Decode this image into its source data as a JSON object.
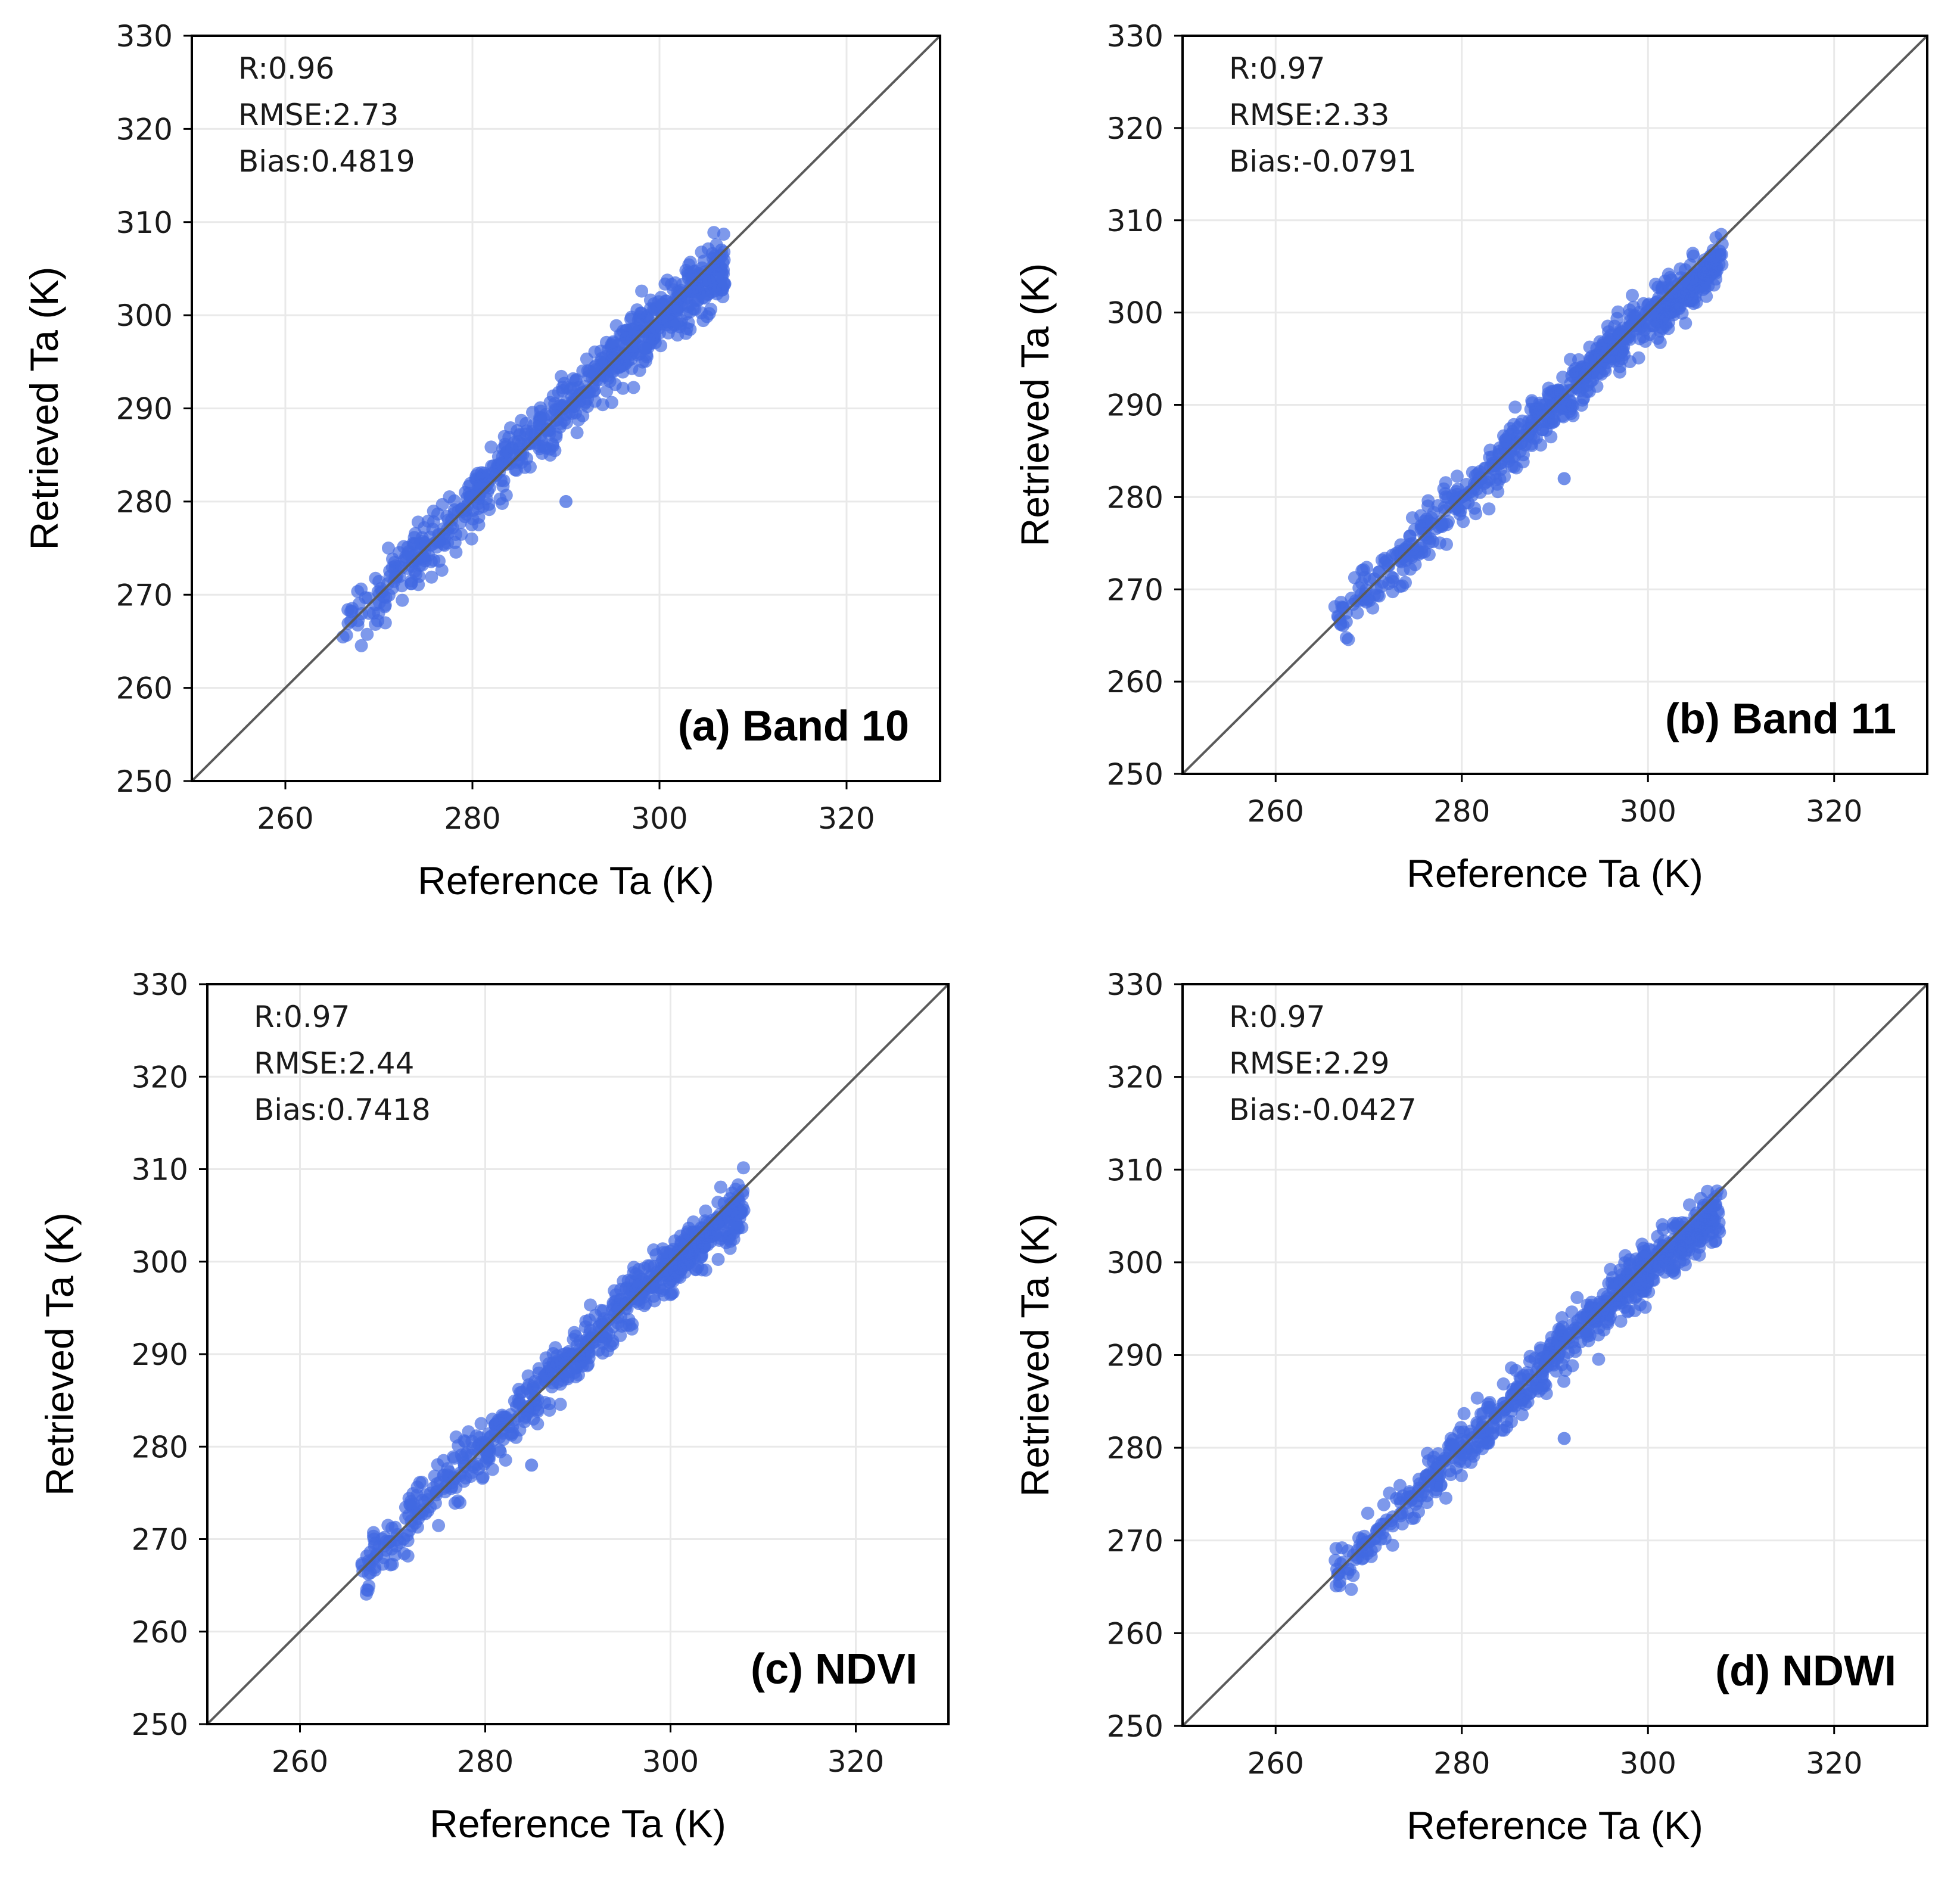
{
  "chart_data": [
    {
      "type": "scatter",
      "title": "(a) Band 10",
      "xlabel": "Reference Ta (K)",
      "ylabel": "Retrieved Ta (K)",
      "xlim": [
        250,
        330
      ],
      "ylim": [
        250,
        330
      ],
      "xticks": [
        "260",
        "280",
        "300",
        "320"
      ],
      "yticks": [
        "250",
        "260",
        "270",
        "280",
        "290",
        "300",
        "310",
        "320",
        "330"
      ],
      "stats": [
        "R:0.96",
        "RMSE:2.73",
        "Bias:0.4819"
      ],
      "reference_line": "1:1",
      "point_color": "#4169e1",
      "x_range": [
        266,
        307
      ],
      "points_approx_count": 700,
      "spread_K": 2.73,
      "bias_K": 0.4819,
      "highlighted_points": [
        {
          "x": 290,
          "y": 280
        }
      ]
    },
    {
      "type": "scatter",
      "title": "(b) Band 11",
      "xlabel": "Reference Ta (K)",
      "ylabel": "Retrieved Ta (K)",
      "xlim": [
        250,
        330
      ],
      "ylim": [
        250,
        330
      ],
      "xticks": [
        "260",
        "280",
        "300",
        "320"
      ],
      "yticks": [
        "250",
        "260",
        "270",
        "280",
        "290",
        "300",
        "310",
        "320",
        "330"
      ],
      "stats": [
        "R:0.97",
        "RMSE:2.33",
        "Bias:-0.0791"
      ],
      "reference_line": "1:1",
      "point_color": "#4169e1",
      "x_range": [
        266,
        308
      ],
      "points_approx_count": 700,
      "spread_K": 2.33,
      "bias_K": -0.0791,
      "highlighted_points": [
        {
          "x": 291,
          "y": 282
        }
      ]
    },
    {
      "type": "scatter",
      "title": "(c) NDVI",
      "xlabel": "Reference Ta (K)",
      "ylabel": "Retrieved Ta (K)",
      "xlim": [
        250,
        330
      ],
      "ylim": [
        250,
        330
      ],
      "xticks": [
        "260",
        "280",
        "300",
        "320"
      ],
      "yticks": [
        "250",
        "260",
        "270",
        "280",
        "290",
        "300",
        "310",
        "320",
        "330"
      ],
      "stats": [
        "R:0.97",
        "RMSE:2.44",
        "Bias:0.7418"
      ],
      "reference_line": "1:1",
      "point_color": "#4169e1",
      "x_range": [
        266,
        308
      ],
      "points_approx_count": 700,
      "spread_K": 2.44,
      "bias_K": 0.7418,
      "highlighted_points": [
        {
          "x": 285,
          "y": 278
        }
      ]
    },
    {
      "type": "scatter",
      "title": "(d) NDWI",
      "xlabel": "Reference Ta (K)",
      "ylabel": "Retrieved Ta (K)",
      "xlim": [
        250,
        330
      ],
      "ylim": [
        250,
        330
      ],
      "xticks": [
        "260",
        "280",
        "300",
        "320"
      ],
      "yticks": [
        "250",
        "260",
        "270",
        "280",
        "290",
        "300",
        "310",
        "320",
        "330"
      ],
      "stats": [
        "R:0.97",
        "RMSE:2.29",
        "Bias:-0.0427"
      ],
      "reference_line": "1:1",
      "point_color": "#4169e1",
      "x_range": [
        266,
        308
      ],
      "points_approx_count": 700,
      "spread_K": 2.29,
      "bias_K": -0.0427,
      "highlighted_points": [
        {
          "x": 291,
          "y": 281
        }
      ]
    }
  ]
}
